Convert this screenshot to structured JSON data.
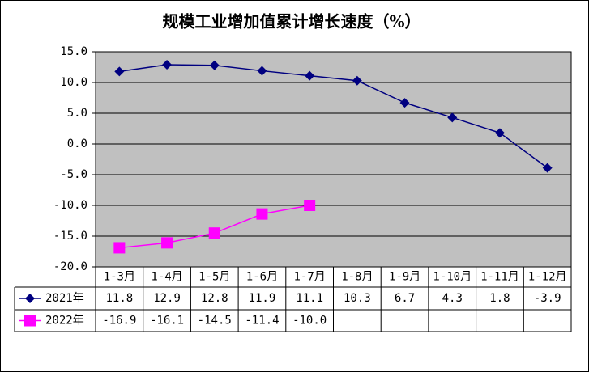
{
  "chart_data": {
    "type": "line",
    "title": "规模工业增加值累计增长速度（%）",
    "categories": [
      "1-3月",
      "1-4月",
      "1-5月",
      "1-6月",
      "1-7月",
      "1-8月",
      "1-9月",
      "1-10月",
      "1-11月",
      "1-12月"
    ],
    "series": [
      {
        "name": "2021年",
        "color": "#000080",
        "marker": "diamond",
        "values": [
          11.8,
          12.9,
          12.8,
          11.9,
          11.1,
          10.3,
          6.7,
          4.3,
          1.8,
          -3.9
        ]
      },
      {
        "name": "2022年",
        "color": "#ff00ff",
        "marker": "square",
        "values": [
          -16.9,
          -16.1,
          -14.5,
          -11.4,
          -10.0,
          null,
          null,
          null,
          null,
          null
        ],
        "value_labels": [
          "-16.9",
          "-16.1",
          "-14.5",
          "-11.4",
          "-10.0",
          null,
          null,
          null,
          null,
          null
        ]
      }
    ],
    "ylim": [
      -20,
      15
    ],
    "yticks": [
      {
        "value": -20,
        "label": "-20.0"
      },
      {
        "value": -15,
        "label": "-15.0"
      },
      {
        "value": -10,
        "label": "-10.0"
      },
      {
        "value": -5,
        "label": "-5.0"
      },
      {
        "value": 0,
        "label": "0.0"
      },
      {
        "value": 5,
        "label": "5.0"
      },
      {
        "value": 10,
        "label": "10.0"
      },
      {
        "value": 15,
        "label": "15.0"
      }
    ],
    "grid": true,
    "plot_background": "#c0c0c0"
  }
}
